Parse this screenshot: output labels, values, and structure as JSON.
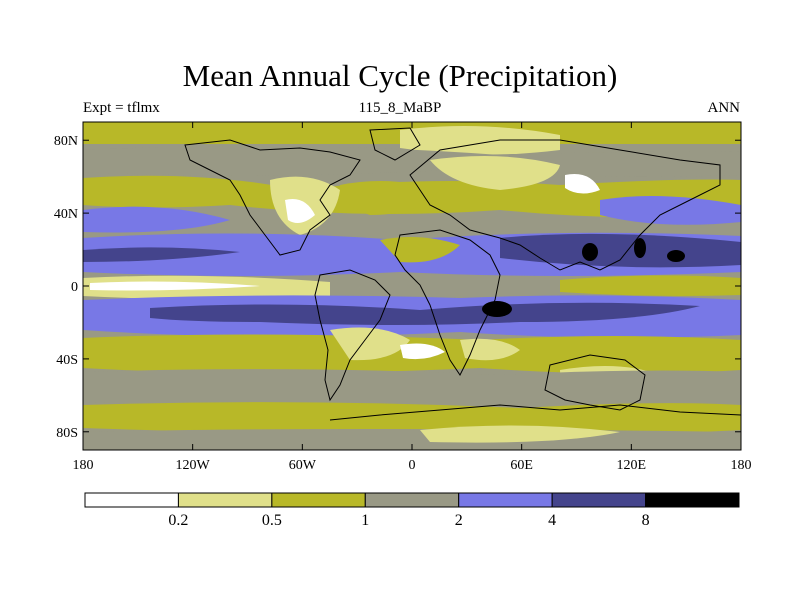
{
  "title": "Mean Annual Cycle (Precipitation)",
  "subtitle_left": "Expt = tflmx",
  "subtitle_center": "115_8_MaBP",
  "subtitle_right": "ANN",
  "colors": {
    "lvl0": "#ffffff",
    "lvl1": "#e0e08a",
    "lvl2": "#b8b828",
    "lvl3": "#999985",
    "lvl4": "#7878e6",
    "lvl5": "#44448c",
    "lvl6": "#000000"
  },
  "lat_ticks": [
    {
      "lat": 80,
      "label": "80N"
    },
    {
      "lat": 40,
      "label": "40N"
    },
    {
      "lat": 0,
      "label": "0"
    },
    {
      "lat": -40,
      "label": "40S"
    },
    {
      "lat": -80,
      "label": "80S"
    }
  ],
  "lon_ticks": [
    {
      "lon": -180,
      "label": "180"
    },
    {
      "lon": -120,
      "label": "120W"
    },
    {
      "lon": -60,
      "label": "60W"
    },
    {
      "lon": 0,
      "label": "0"
    },
    {
      "lon": 60,
      "label": "60E"
    },
    {
      "lon": 120,
      "label": "120E"
    },
    {
      "lon": 180,
      "label": "180"
    }
  ],
  "colorbar": {
    "boxes": [
      "#ffffff",
      "#e0e08a",
      "#b8b828",
      "#999985",
      "#7878e6",
      "#44448c",
      "#000000"
    ],
    "labels": [
      "0.2",
      "0.5",
      "1",
      "2",
      "4",
      "8"
    ]
  },
  "chart_data": {
    "type": "heatmap",
    "title": "Mean Annual Cycle (Precipitation)",
    "variable": "Precipitation",
    "experiment": "tflmx",
    "period": "115_8_MaBP",
    "season": "ANN",
    "xlim": [
      -180,
      180
    ],
    "ylim": [
      -90,
      90
    ],
    "contour_levels": [
      0.2,
      0.5,
      1,
      2,
      4,
      8
    ]
  }
}
